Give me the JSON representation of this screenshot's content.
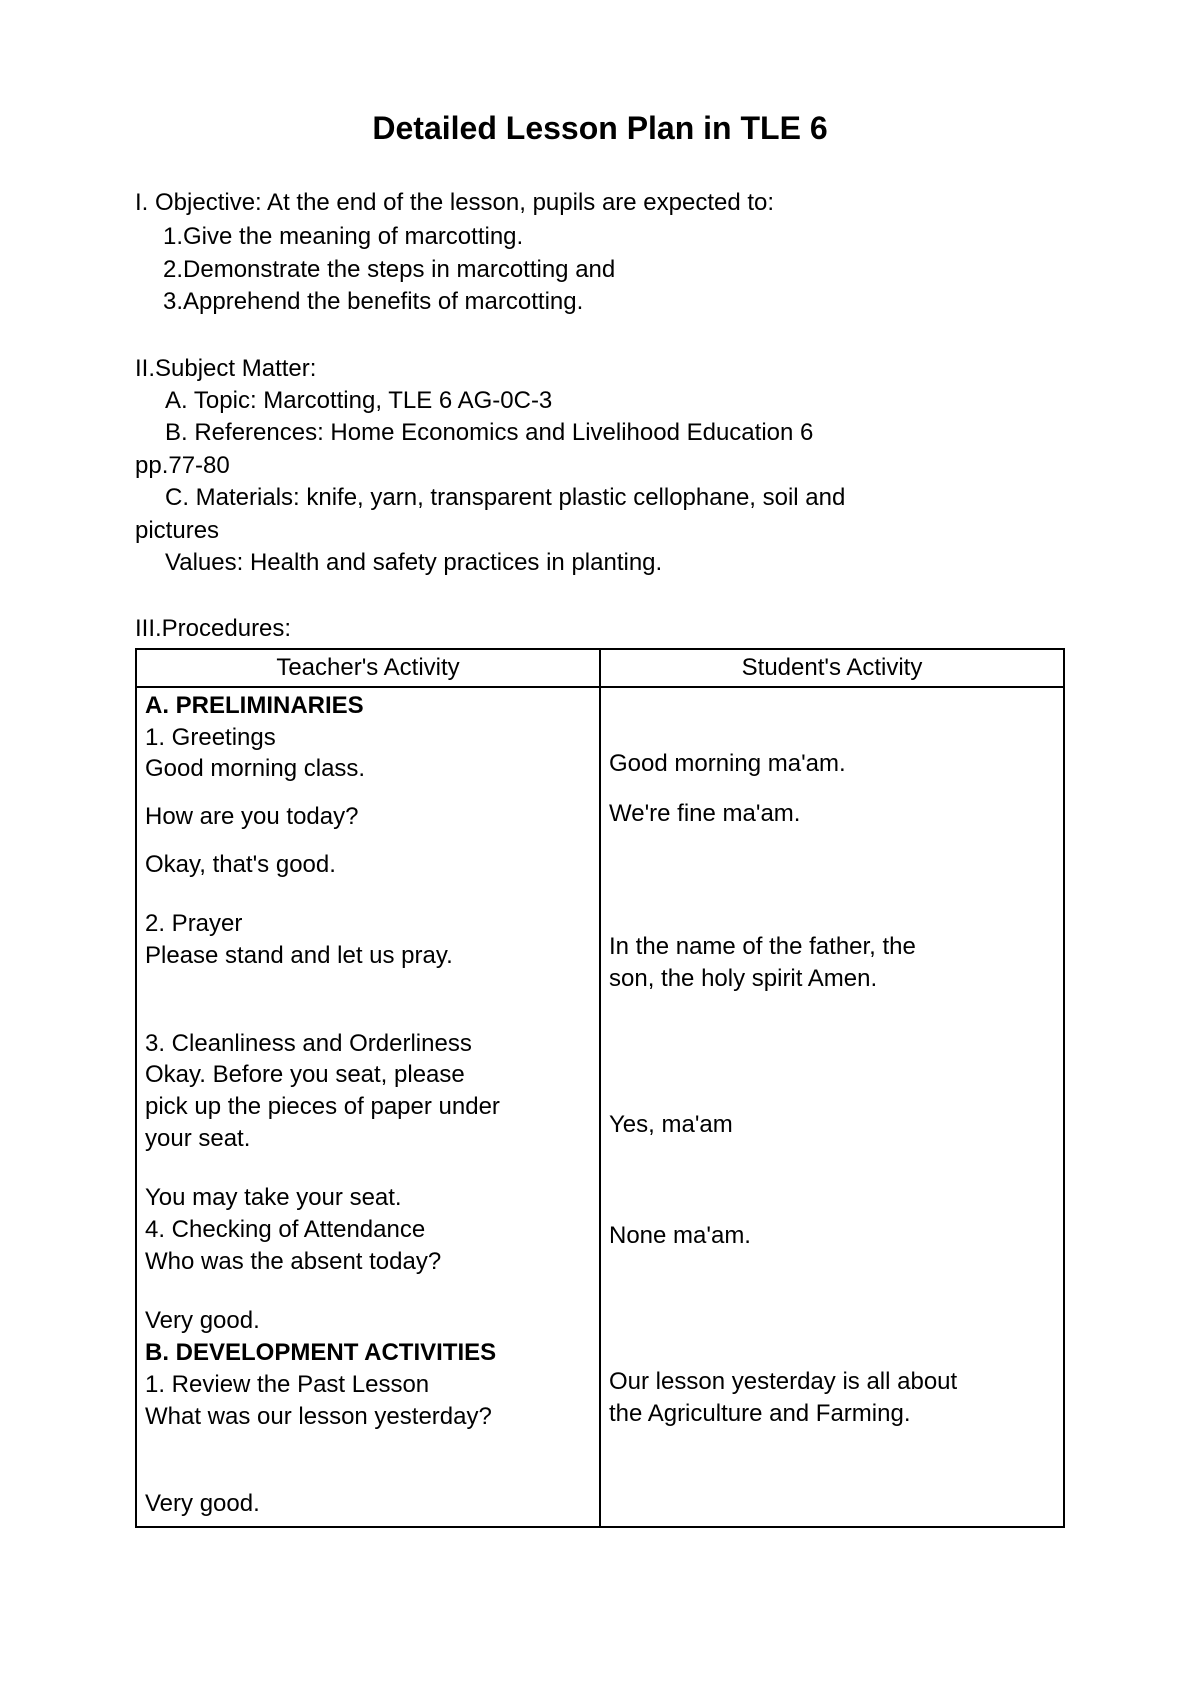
{
  "title": "Detailed Lesson Plan in TLE 6",
  "objective": {
    "header": "I.  Objective: At the end of the lesson, pupils are expected to:",
    "items": [
      "1.Give the meaning of marcotting.",
      "2.Demonstrate the steps in marcotting and",
      "3.Apprehend the benefits of marcotting."
    ]
  },
  "subjectMatter": {
    "header": "II.Subject Matter:",
    "topic": "A. Topic: Marcotting, TLE 6 AG-0C-3",
    "references": "B. References: Home Economics and Livelihood Education 6",
    "referencesPages": "pp.77-80",
    "materials": "C. Materials: knife, yarn, transparent plastic cellophane, soil and",
    "materialsLine2": "pictures",
    "values": "Values: Health and safety practices in planting."
  },
  "procedures": {
    "header": "III.Procedures:",
    "teacherHeader": "Teacher's Activity",
    "studentHeader": "Student's Activity",
    "teacher": {
      "preliminaries": "A. PRELIMINARIES",
      "greetings": "1. Greetings",
      "goodMorning": "Good morning class.",
      "howAreYou": "How are you today?",
      "okayGood": "Okay, that's good.",
      "prayer": "2. Prayer",
      "pleaseStand": "Please stand and let us pray.",
      "cleanliness": "3. Cleanliness and Orderliness",
      "cleanlinessLine1": "Okay. Before you seat, please",
      "cleanlinessLine2": "pick up the pieces of paper under",
      "cleanlinessLine3": "your seat.",
      "takeSeat": "You may take your seat.",
      "attendance": "4. Checking of Attendance",
      "absentQuestion": "Who was the absent today?",
      "veryGood1": "Very good.",
      "development": "B. DEVELOPMENT ACTIVITIES",
      "review": "1. Review the Past Lesson",
      "yesterdayQuestion": "What was our lesson yesterday?",
      "veryGood2": "Very good."
    },
    "student": {
      "goodMorning": "Good morning ma'am.",
      "wereFine": "We're fine ma'am.",
      "prayerResponse1": "In the name of the father, the",
      "prayerResponse2": "son, the holy spirit Amen.",
      "yesMaam": "Yes, ma'am",
      "noneMaam": "None ma'am.",
      "yesterdayAnswer1": "Our lesson yesterday is all about",
      "yesterdayAnswer2": "the Agriculture and Farming."
    }
  },
  "styling": {
    "pageWidth": 1200,
    "pageHeight": 1697,
    "backgroundColor": "#ffffff",
    "textColor": "#000000",
    "borderColor": "#000000",
    "fontFamily": "Arial",
    "titleFontSize": 32,
    "bodyFontSize": 24,
    "tableBorderWidth": 2
  }
}
